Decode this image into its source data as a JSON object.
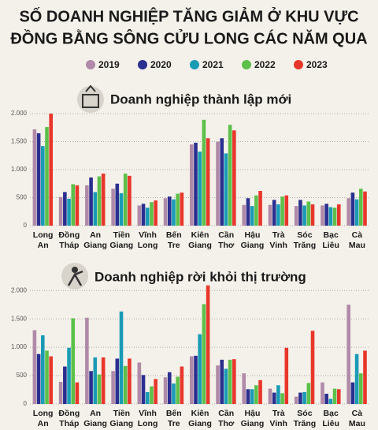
{
  "title_lines": [
    "SỐ DOANH NGHIỆP TĂNG GIẢM Ở KHU VỰC",
    "ĐỒNG BẰNG SÔNG CỬU LONG CÁC NĂM QUA"
  ],
  "chart_data": [
    {
      "type": "bar",
      "title": "Doanh nghiệp thành lập mới",
      "categories": [
        "Long An",
        "Đồng Tháp",
        "An Giang",
        "Tiền Giang",
        "Vĩnh Long",
        "Bến Tre",
        "Kiên Giang",
        "Cần Thơ",
        "Hậu Giang",
        "Trà Vinh",
        "Sóc Trăng",
        "Bạc Liêu",
        "Cà Mau"
      ],
      "series": [
        {
          "name": "2019",
          "color": "#b08aa8",
          "values": [
            1720,
            510,
            720,
            660,
            360,
            490,
            1450,
            1500,
            370,
            370,
            350,
            360,
            490
          ]
        },
        {
          "name": "2020",
          "color": "#2b2f8f",
          "values": [
            1650,
            600,
            860,
            750,
            390,
            520,
            1480,
            1560,
            490,
            460,
            460,
            390,
            590
          ]
        },
        {
          "name": "2021",
          "color": "#1a9bb5",
          "values": [
            1420,
            480,
            600,
            580,
            320,
            470,
            1320,
            1290,
            350,
            380,
            360,
            330,
            470
          ]
        },
        {
          "name": "2022",
          "color": "#5cc04a",
          "values": [
            1760,
            740,
            880,
            930,
            420,
            570,
            1890,
            1800,
            540,
            520,
            430,
            320,
            660
          ]
        },
        {
          "name": "2023",
          "color": "#e8372a",
          "values": [
            2000,
            720,
            930,
            890,
            450,
            590,
            1560,
            1700,
            620,
            540,
            380,
            380,
            610
          ]
        }
      ],
      "ylim": [
        0,
        2000
      ],
      "yticks": [
        0,
        {
          "value": 500,
          "label": "500"
        },
        {
          "value": 1000,
          "label": "1.000"
        },
        {
          "value": 1500,
          "label": "1.500"
        },
        {
          "value": 2000,
          "label": "2.000"
        }
      ],
      "grid": true
    },
    {
      "type": "bar",
      "title": "Doanh nghiệp rời khỏi thị trường",
      "categories": [
        "Long An",
        "Đồng Tháp",
        "An Giang",
        "Tiền Giang",
        "Vĩnh Long",
        "Bến Tre",
        "Kiên Giang",
        "Cần Thơ",
        "Hậu Giang",
        "Trà Vinh",
        "Sóc Trăng",
        "Bạc Liêu",
        "Cà Mau"
      ],
      "series": [
        {
          "color": "#b08aa8",
          "values": [
            1300,
            390,
            1520,
            580,
            730,
            470,
            840,
            680,
            540,
            270,
            130,
            380,
            1750
          ]
        },
        {
          "color": "#2b2f8f",
          "values": [
            880,
            660,
            580,
            800,
            510,
            560,
            850,
            780,
            260,
            200,
            200,
            180,
            380
          ]
        },
        {
          "color": "#1a9bb5",
          "values": [
            1210,
            990,
            820,
            1630,
            210,
            360,
            1230,
            620,
            260,
            330,
            210,
            90,
            880
          ]
        },
        {
          "color": "#5cc04a",
          "values": [
            940,
            1510,
            520,
            670,
            310,
            480,
            1760,
            780,
            330,
            190,
            370,
            270,
            540
          ]
        },
        {
          "color": "#e8372a",
          "values": [
            840,
            380,
            820,
            800,
            440,
            660,
            2090,
            790,
            420,
            990,
            1290,
            260,
            940
          ]
        }
      ],
      "ylim": [
        0,
        2100
      ],
      "yticks": [
        0,
        {
          "value": 500,
          "label": "500"
        },
        {
          "value": 1000,
          "label": "1.000"
        },
        {
          "value": 1500,
          "label": "1.500"
        },
        {
          "value": 2000,
          "label": "2.000"
        }
      ],
      "grid": true
    }
  ]
}
